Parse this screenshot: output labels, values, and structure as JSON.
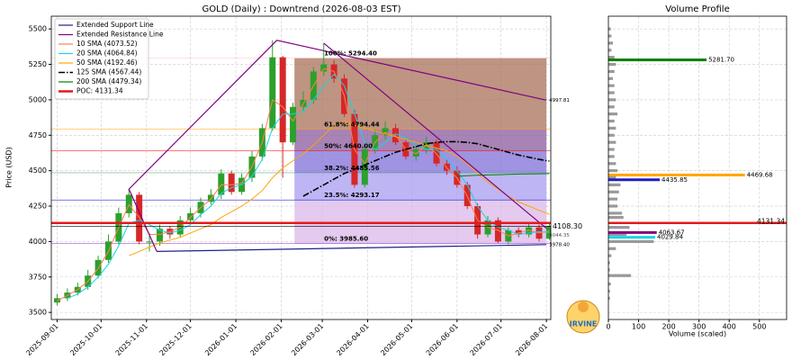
{
  "chart_data": {
    "type": "candlestick",
    "title": "GOLD (Daily) : Downtrend (2026-08-03 EST)",
    "ylabel": "Price (USD)",
    "xlim": [
      "2025-08-28",
      "2026-08-04"
    ],
    "xticks": [
      "2025-09-01",
      "2025-10-01",
      "2025-11-01",
      "2025-12-01",
      "2026-01-01",
      "2026-02-01",
      "2026-03-01",
      "2026-04-01",
      "2026-05-01",
      "2026-06-01",
      "2026-07-01",
      "2026-08-01"
    ],
    "ylim": [
      3450,
      5590
    ],
    "yticks": [
      3500,
      3750,
      4000,
      4250,
      4500,
      4750,
      5000,
      5250,
      5500
    ],
    "grid": true,
    "legend": "upper left",
    "up_color": "#2ca02c",
    "down_color": "#d62728",
    "x": [
      "2025-09-01",
      "2025-09-08",
      "2025-09-15",
      "2025-09-22",
      "2025-09-29",
      "2025-10-06",
      "2025-10-13",
      "2025-10-20",
      "2025-10-27",
      "2025-11-03",
      "2025-11-10",
      "2025-11-17",
      "2025-11-24",
      "2025-12-01",
      "2025-12-08",
      "2025-12-15",
      "2025-12-22",
      "2025-12-29",
      "2026-01-05",
      "2026-01-12",
      "2026-01-19",
      "2026-01-26",
      "2026-02-02",
      "2026-02-09",
      "2026-02-16",
      "2026-02-23",
      "2026-03-02",
      "2026-03-09",
      "2026-03-16",
      "2026-03-23",
      "2026-03-30",
      "2026-04-06",
      "2026-04-13",
      "2026-04-20",
      "2026-04-27",
      "2026-05-04",
      "2026-05-11",
      "2026-05-18",
      "2026-05-25",
      "2026-06-01",
      "2026-06-08",
      "2026-06-15",
      "2026-06-22",
      "2026-06-29",
      "2026-07-06",
      "2026-07-13",
      "2026-07-20",
      "2026-07-27",
      "2026-08-03"
    ],
    "candles": {
      "open": [
        3570,
        3600,
        3640,
        3680,
        3760,
        3870,
        4000,
        4200,
        4330,
        4000,
        4000,
        4090,
        4050,
        4150,
        4200,
        4280,
        4330,
        4480,
        4350,
        4450,
        4600,
        4800,
        5300,
        4700,
        4950,
        5000,
        5200,
        5250,
        5150,
        4900,
        4400,
        4650,
        4750,
        4800,
        4700,
        4600,
        4650,
        4700,
        4550,
        4500,
        4400,
        4250,
        4050,
        4150,
        4000,
        4080,
        4050,
        4100,
        4020
      ],
      "high": [
        3630,
        3670,
        3710,
        3800,
        3900,
        4050,
        4240,
        4370,
        4350,
        4060,
        4120,
        4110,
        4180,
        4240,
        4310,
        4370,
        4510,
        4500,
        4480,
        4640,
        4830,
        5420,
        5310,
        4980,
        5060,
        5230,
        5400,
        5280,
        5180,
        4930,
        4680,
        4790,
        4850,
        4830,
        4720,
        4680,
        4740,
        4720,
        4580,
        4530,
        4420,
        4270,
        4180,
        4170,
        4100,
        4100,
        4130,
        4120,
        4130
      ],
      "low": [
        3550,
        3580,
        3620,
        3660,
        3740,
        3850,
        3980,
        4170,
        3980,
        3930,
        3970,
        4020,
        4030,
        4130,
        4170,
        4260,
        4300,
        4330,
        4330,
        4420,
        4570,
        4780,
        4450,
        4680,
        4920,
        4970,
        5170,
        5120,
        4880,
        4380,
        4380,
        4620,
        4720,
        4680,
        4580,
        4570,
        4620,
        4530,
        4470,
        4380,
        4230,
        4020,
        4030,
        3990,
        3980,
        4030,
        4030,
        4000,
        4010
      ],
      "close": [
        3600,
        3640,
        3680,
        3760,
        3870,
        4000,
        4200,
        4330,
        4000,
        4000,
        4090,
        4050,
        4150,
        4200,
        4280,
        4330,
        4480,
        4350,
        4450,
        4600,
        4800,
        5300,
        4700,
        4950,
        5000,
        5200,
        5250,
        5150,
        4900,
        4400,
        4650,
        4750,
        4800,
        4700,
        4600,
        4650,
        4700,
        4550,
        4500,
        4400,
        4250,
        4050,
        4150,
        4000,
        4080,
        4050,
        4100,
        4020,
        4108.3
      ]
    },
    "trend_lines": [
      {
        "name": "Extended Support Line",
        "color": "#1f1f8f",
        "x": [
          "2025-11-08",
          "2026-08-01"
        ],
        "y": [
          3930,
          3978.4
        ],
        "end_label": "3978.40"
      },
      {
        "name": "Extended Resistance Line",
        "color": "#800080",
        "x": [
          "2025-11-08",
          "2025-10-20",
          "2026-01-29",
          "2026-08-01",
          "2026-08-01",
          "2026-03-02",
          "2026-08-01"
        ],
        "y": [
          3930,
          4370,
          5420,
          4997.81,
          null,
          5400,
          4093
        ],
        "end_label": "4997.81"
      }
    ],
    "series": [
      {
        "name": "10 SMA (4073.52)",
        "color": "#ff7f50",
        "values": [
          3580,
          3620,
          3660,
          3720,
          3810,
          3930,
          4100,
          4260,
          4170,
          4050,
          4050,
          4070,
          4100,
          4170,
          4240,
          4300,
          4400,
          4400,
          4410,
          4530,
          4700,
          5000,
          4950,
          4850,
          4970,
          5100,
          5220,
          5200,
          5030,
          4650,
          4550,
          4700,
          4770,
          4750,
          4650,
          4620,
          4680,
          4620,
          4520,
          4450,
          4320,
          4150,
          4100,
          4080,
          4040,
          4060,
          4080,
          4060,
          4073.52
        ]
      },
      {
        "name": "20 SMA (4064.84)",
        "color": "#17d4e8",
        "values": [
          null,
          3600,
          3630,
          3680,
          3750,
          3840,
          3970,
          4130,
          4150,
          4120,
          4080,
          4060,
          4080,
          4120,
          4190,
          4250,
          4340,
          4380,
          4400,
          4460,
          4580,
          4800,
          4900,
          4900,
          4920,
          5000,
          5100,
          5180,
          5100,
          4900,
          4700,
          4650,
          4700,
          4760,
          4730,
          4680,
          4650,
          4650,
          4580,
          4500,
          4400,
          4250,
          4150,
          4100,
          4080,
          4050,
          4060,
          4070,
          4064.84
        ]
      },
      {
        "name": "50 SMA (4192.46)",
        "color": "#ffa500",
        "values": [
          null,
          null,
          null,
          null,
          null,
          null,
          null,
          3900,
          3930,
          3960,
          3990,
          4010,
          4030,
          4060,
          4090,
          4120,
          4170,
          4210,
          4250,
          4300,
          4360,
          4450,
          4520,
          4570,
          4620,
          4680,
          4750,
          4820,
          4850,
          4820,
          4800,
          4780,
          4760,
          4740,
          4720,
          4700,
          4680,
          4660,
          4640,
          4600,
          4550,
          4480,
          4420,
          4370,
          4320,
          4280,
          4250,
          4220,
          4192.46
        ]
      },
      {
        "name": "125 SMA (4567.44)",
        "color": "#000000",
        "dash": "7,2,1.5,2",
        "values": [
          null,
          null,
          null,
          null,
          null,
          null,
          null,
          null,
          null,
          null,
          null,
          null,
          null,
          null,
          null,
          null,
          null,
          null,
          null,
          null,
          null,
          null,
          null,
          null,
          4320,
          4360,
          4400,
          4440,
          4480,
          4510,
          4540,
          4570,
          4600,
          4630,
          4650,
          4670,
          4690,
          4700,
          4705,
          4705,
          4700,
          4690,
          4670,
          4650,
          4630,
          4610,
          4595,
          4580,
          4567.44
        ]
      },
      {
        "name": "200 SMA (4479.34)",
        "color": "#008000",
        "values": [
          null,
          null,
          null,
          null,
          null,
          null,
          null,
          null,
          null,
          null,
          null,
          null,
          null,
          null,
          null,
          null,
          null,
          null,
          null,
          null,
          null,
          null,
          null,
          null,
          null,
          null,
          null,
          null,
          null,
          null,
          null,
          null,
          null,
          null,
          null,
          null,
          null,
          null,
          null,
          4460,
          4465,
          4468,
          4470,
          4472,
          4474,
          4476,
          4477,
          4478,
          4479.34
        ]
      }
    ],
    "poc": {
      "name": "POC: 4131.34",
      "value": 4131.34,
      "label": "4131.34",
      "color": "#e31a1c"
    },
    "last_price": {
      "value": 4108.3,
      "label": "4108.30"
    },
    "annotations": [
      {
        "text": "4044.35",
        "x": "2026-08-01",
        "y": 4044.35
      }
    ],
    "fibonacci": {
      "x": [
        "2026-02-10",
        "2026-08-01"
      ],
      "levels": [
        {
          "label": "0%: 3985.60",
          "value": 3985.6,
          "color": "#9932cc"
        },
        {
          "label": "23.5%: 4293.17",
          "value": 4293.17,
          "color": "#0000cd"
        },
        {
          "label": "38.2%: 4485.56",
          "value": 4485.56,
          "color": "#2e8b57"
        },
        {
          "label": "50%: 4640.00",
          "value": 4640,
          "color": "#ff0000"
        },
        {
          "label": "61.8%: 4794.44",
          "value": 4794.44,
          "color": "#ffa500"
        },
        {
          "label": "100%: 5294.40",
          "value": 5294.4,
          "color": "#ffb6c1"
        }
      ],
      "band_colors": [
        "#d9b8e8",
        "#a89cf0",
        "#7f6fd8",
        "#8a5a9e",
        "#a8705a"
      ]
    },
    "volume_profile": {
      "title": "Volume Profile",
      "xlabel": "Volume (scaled)",
      "xlim": [
        0,
        590
      ],
      "xticks": [
        0,
        100,
        200,
        300,
        400,
        500
      ],
      "color": "#999999",
      "prices": [
        3600,
        3650,
        3700,
        3760,
        3800,
        3850,
        3900,
        3950,
        4000,
        4050,
        4100,
        4170,
        4200,
        4250,
        4300,
        4350,
        4400,
        4450,
        4500,
        4550,
        4600,
        4650,
        4700,
        4750,
        4800,
        4850,
        4900,
        4950,
        5000,
        5050,
        5100,
        5150,
        5200,
        5250,
        5300,
        5350,
        5400,
        5450,
        5500
      ],
      "volumes": [
        5,
        5,
        8,
        75,
        5,
        5,
        10,
        25,
        150,
        60,
        70,
        50,
        45,
        30,
        30,
        35,
        40,
        25,
        30,
        25,
        20,
        20,
        25,
        20,
        25,
        20,
        30,
        20,
        25,
        20,
        20,
        15,
        20,
        25,
        20,
        10,
        15,
        10,
        8
      ],
      "highlights": [
        {
          "price": 5281.7,
          "volume": 325,
          "label": "5281.70",
          "color": "#008000"
        },
        {
          "price": 4469.68,
          "volume": 452,
          "label": "4469.68",
          "color": "#ffa500"
        },
        {
          "price": 4435.85,
          "volume": 170,
          "label": "4435.85",
          "color": "#1f1fbf"
        },
        {
          "price": 4063.67,
          "volume": 160,
          "label": "4063.67",
          "color": "#800080"
        },
        {
          "price": 4029.84,
          "volume": 155,
          "label": "4029.84",
          "color": "#17d4e8"
        }
      ]
    },
    "logo_text": "IRVINE"
  }
}
